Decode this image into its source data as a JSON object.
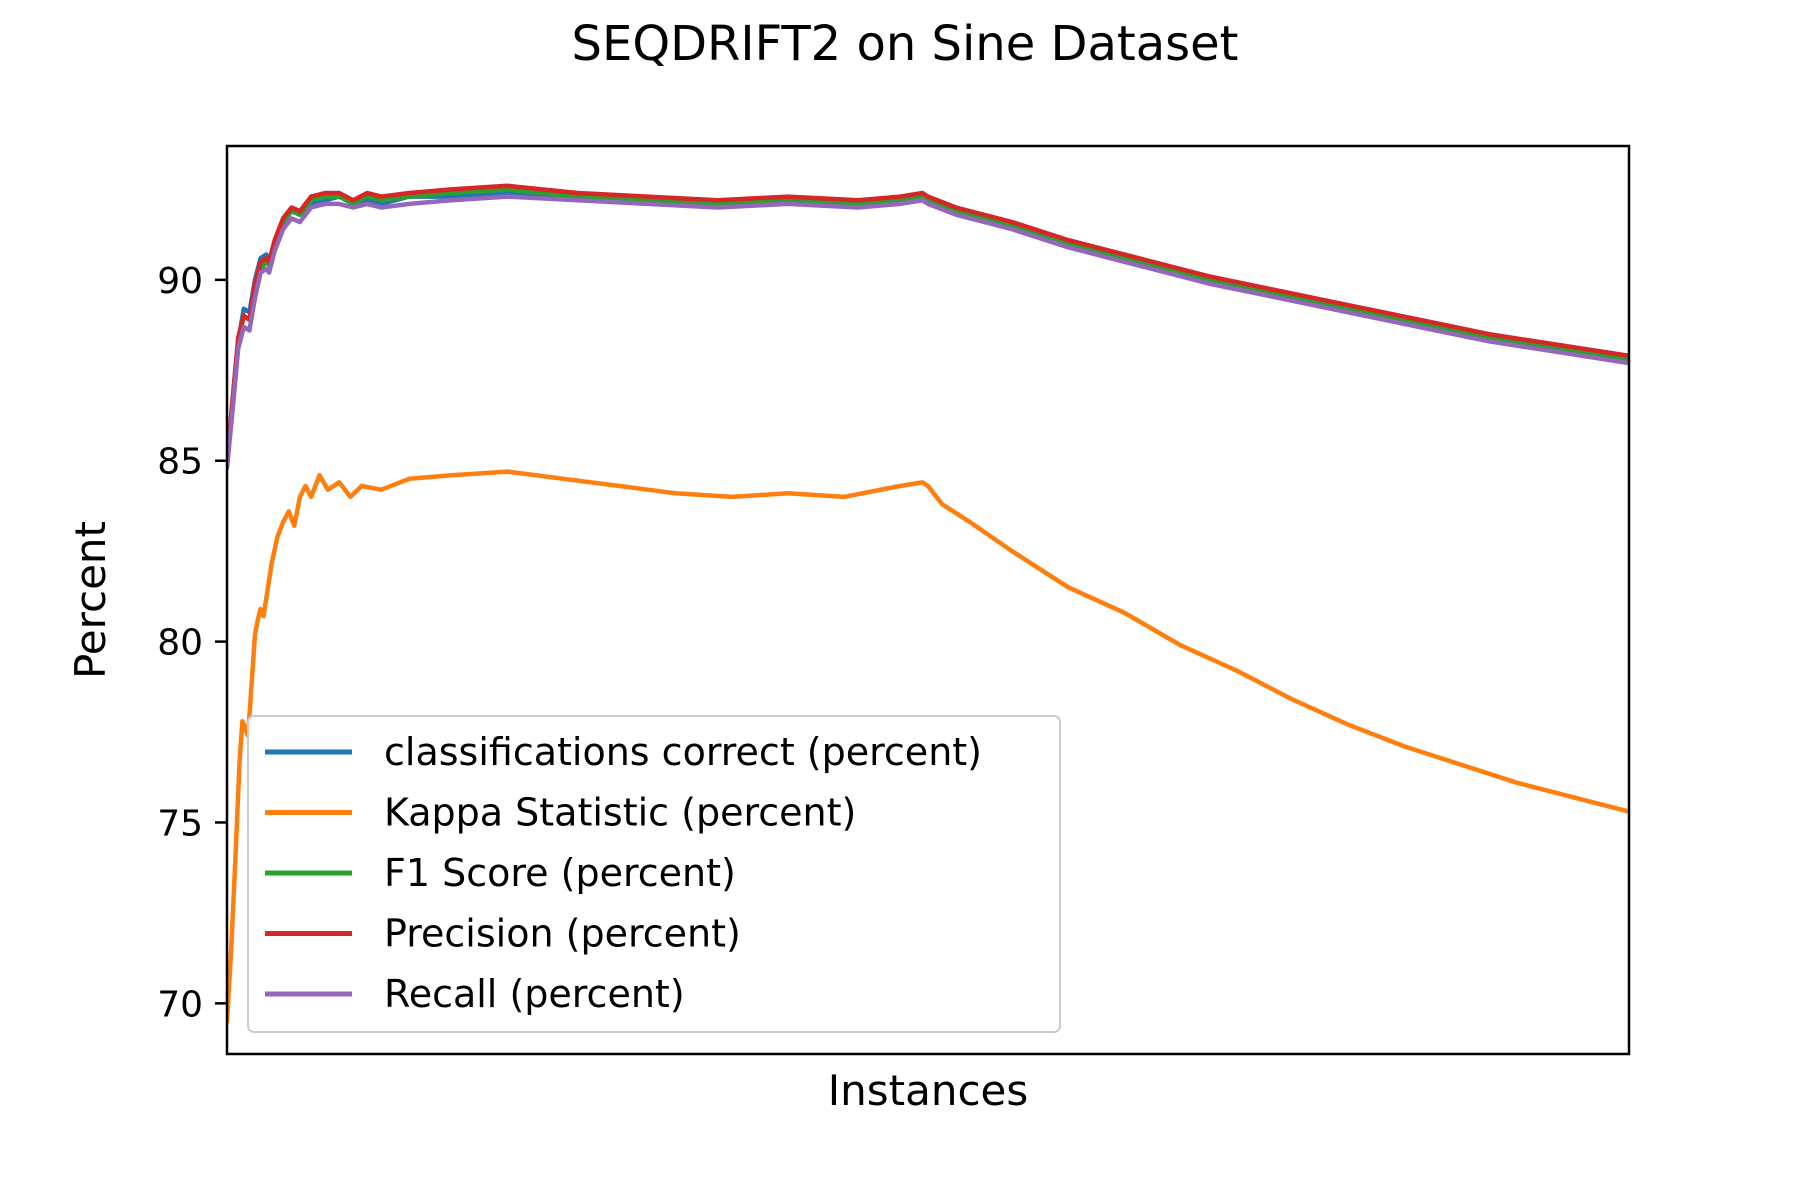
{
  "chart_data": {
    "type": "line",
    "title": "SEQDRIFT2 on Sine Dataset",
    "xlabel": "Instances",
    "ylabel": "Percent",
    "xlim": [
      0,
      1000
    ],
    "ylim": [
      68.6,
      93.7
    ],
    "yticks": [
      70,
      75,
      80,
      85,
      90
    ],
    "xticks": [],
    "grid": false,
    "legend_position": "lower-left",
    "series": [
      {
        "name": "classifications correct (percent)",
        "color": "#1f77b4",
        "points": [
          [
            0,
            85.0
          ],
          [
            4,
            86.6
          ],
          [
            8,
            88.3
          ],
          [
            12,
            89.2
          ],
          [
            16,
            89.1
          ],
          [
            20,
            90.0
          ],
          [
            24,
            90.6
          ],
          [
            28,
            90.7
          ],
          [
            30,
            90.5
          ],
          [
            34,
            91.0
          ],
          [
            40,
            91.6
          ],
          [
            46,
            91.9
          ],
          [
            52,
            91.8
          ],
          [
            60,
            92.1
          ],
          [
            70,
            92.2
          ],
          [
            80,
            92.3
          ],
          [
            90,
            92.1
          ],
          [
            100,
            92.2
          ],
          [
            110,
            92.1
          ],
          [
            130,
            92.3
          ],
          [
            160,
            92.3
          ],
          [
            200,
            92.4
          ],
          [
            250,
            92.3
          ],
          [
            300,
            92.2
          ],
          [
            350,
            92.1
          ],
          [
            400,
            92.2
          ],
          [
            450,
            92.1
          ],
          [
            480,
            92.2
          ],
          [
            496,
            92.3
          ],
          [
            500,
            92.2
          ],
          [
            520,
            91.9
          ],
          [
            560,
            91.5
          ],
          [
            600,
            91.0
          ],
          [
            650,
            90.5
          ],
          [
            700,
            90.0
          ],
          [
            750,
            89.6
          ],
          [
            800,
            89.2
          ],
          [
            850,
            88.8
          ],
          [
            900,
            88.4
          ],
          [
            950,
            88.1
          ],
          [
            1000,
            87.8
          ]
        ]
      },
      {
        "name": "Kappa Statistic (percent)",
        "color": "#ff7f0e",
        "points": [
          [
            0,
            69.5
          ],
          [
            3,
            71.5
          ],
          [
            6,
            74.0
          ],
          [
            9,
            76.7
          ],
          [
            11,
            77.8
          ],
          [
            13,
            77.6
          ],
          [
            15,
            77.4
          ],
          [
            17,
            78.5
          ],
          [
            20,
            80.2
          ],
          [
            22,
            80.6
          ],
          [
            24,
            80.9
          ],
          [
            26,
            80.7
          ],
          [
            28,
            81.2
          ],
          [
            32,
            82.2
          ],
          [
            36,
            82.9
          ],
          [
            40,
            83.3
          ],
          [
            44,
            83.6
          ],
          [
            48,
            83.2
          ],
          [
            52,
            84.0
          ],
          [
            56,
            84.3
          ],
          [
            60,
            84.0
          ],
          [
            66,
            84.6
          ],
          [
            72,
            84.2
          ],
          [
            80,
            84.4
          ],
          [
            88,
            84.0
          ],
          [
            96,
            84.3
          ],
          [
            110,
            84.2
          ],
          [
            130,
            84.5
          ],
          [
            160,
            84.6
          ],
          [
            200,
            84.7
          ],
          [
            240,
            84.5
          ],
          [
            280,
            84.3
          ],
          [
            320,
            84.1
          ],
          [
            360,
            84.0
          ],
          [
            400,
            84.1
          ],
          [
            440,
            84.0
          ],
          [
            480,
            84.3
          ],
          [
            496,
            84.4
          ],
          [
            500,
            84.3
          ],
          [
            510,
            83.8
          ],
          [
            530,
            83.3
          ],
          [
            560,
            82.5
          ],
          [
            600,
            81.5
          ],
          [
            640,
            80.8
          ],
          [
            680,
            79.9
          ],
          [
            720,
            79.2
          ],
          [
            760,
            78.4
          ],
          [
            800,
            77.7
          ],
          [
            840,
            77.1
          ],
          [
            880,
            76.6
          ],
          [
            920,
            76.1
          ],
          [
            960,
            75.7
          ],
          [
            1000,
            75.3
          ]
        ]
      },
      {
        "name": "F1 Score (percent)",
        "color": "#2ca02c",
        "points": [
          [
            0,
            85.0
          ],
          [
            4,
            86.6
          ],
          [
            8,
            88.3
          ],
          [
            12,
            89.0
          ],
          [
            16,
            88.9
          ],
          [
            20,
            89.8
          ],
          [
            24,
            90.3
          ],
          [
            28,
            90.5
          ],
          [
            30,
            90.4
          ],
          [
            34,
            90.9
          ],
          [
            40,
            91.6
          ],
          [
            46,
            91.9
          ],
          [
            52,
            91.8
          ],
          [
            60,
            92.2
          ],
          [
            70,
            92.3
          ],
          [
            80,
            92.3
          ],
          [
            90,
            92.1
          ],
          [
            100,
            92.3
          ],
          [
            110,
            92.2
          ],
          [
            130,
            92.3
          ],
          [
            160,
            92.4
          ],
          [
            200,
            92.5
          ],
          [
            250,
            92.3
          ],
          [
            300,
            92.2
          ],
          [
            350,
            92.1
          ],
          [
            400,
            92.2
          ],
          [
            450,
            92.1
          ],
          [
            480,
            92.2
          ],
          [
            496,
            92.3
          ],
          [
            500,
            92.2
          ],
          [
            520,
            91.9
          ],
          [
            560,
            91.5
          ],
          [
            600,
            91.0
          ],
          [
            650,
            90.5
          ],
          [
            700,
            90.0
          ],
          [
            750,
            89.6
          ],
          [
            800,
            89.2
          ],
          [
            850,
            88.8
          ],
          [
            900,
            88.4
          ],
          [
            950,
            88.1
          ],
          [
            1000,
            87.8
          ]
        ]
      },
      {
        "name": "Precision (percent)",
        "color": "#d62728",
        "points": [
          [
            0,
            85.0
          ],
          [
            4,
            86.7
          ],
          [
            8,
            88.4
          ],
          [
            12,
            89.0
          ],
          [
            16,
            88.9
          ],
          [
            20,
            89.9
          ],
          [
            24,
            90.5
          ],
          [
            28,
            90.6
          ],
          [
            30,
            90.5
          ],
          [
            34,
            91.1
          ],
          [
            40,
            91.7
          ],
          [
            46,
            92.0
          ],
          [
            52,
            91.9
          ],
          [
            60,
            92.3
          ],
          [
            70,
            92.4
          ],
          [
            80,
            92.4
          ],
          [
            90,
            92.2
          ],
          [
            100,
            92.4
          ],
          [
            110,
            92.3
          ],
          [
            130,
            92.4
          ],
          [
            160,
            92.5
          ],
          [
            200,
            92.6
          ],
          [
            250,
            92.4
          ],
          [
            300,
            92.3
          ],
          [
            350,
            92.2
          ],
          [
            400,
            92.3
          ],
          [
            450,
            92.2
          ],
          [
            480,
            92.3
          ],
          [
            496,
            92.4
          ],
          [
            500,
            92.3
          ],
          [
            520,
            92.0
          ],
          [
            560,
            91.6
          ],
          [
            600,
            91.1
          ],
          [
            650,
            90.6
          ],
          [
            700,
            90.1
          ],
          [
            750,
            89.7
          ],
          [
            800,
            89.3
          ],
          [
            850,
            88.9
          ],
          [
            900,
            88.5
          ],
          [
            950,
            88.2
          ],
          [
            1000,
            87.9
          ]
        ]
      },
      {
        "name": "Recall (percent)",
        "color": "#9467bd",
        "points": [
          [
            0,
            84.8
          ],
          [
            4,
            86.4
          ],
          [
            8,
            88.1
          ],
          [
            12,
            88.7
          ],
          [
            16,
            88.6
          ],
          [
            20,
            89.5
          ],
          [
            24,
            90.2
          ],
          [
            28,
            90.3
          ],
          [
            30,
            90.2
          ],
          [
            34,
            90.8
          ],
          [
            40,
            91.4
          ],
          [
            46,
            91.7
          ],
          [
            52,
            91.6
          ],
          [
            60,
            92.0
          ],
          [
            70,
            92.1
          ],
          [
            80,
            92.1
          ],
          [
            90,
            92.0
          ],
          [
            100,
            92.1
          ],
          [
            110,
            92.0
          ],
          [
            130,
            92.1
          ],
          [
            160,
            92.2
          ],
          [
            200,
            92.3
          ],
          [
            250,
            92.2
          ],
          [
            300,
            92.1
          ],
          [
            350,
            92.0
          ],
          [
            400,
            92.1
          ],
          [
            450,
            92.0
          ],
          [
            480,
            92.1
          ],
          [
            496,
            92.2
          ],
          [
            500,
            92.1
          ],
          [
            520,
            91.8
          ],
          [
            560,
            91.4
          ],
          [
            600,
            90.9
          ],
          [
            650,
            90.4
          ],
          [
            700,
            89.9
          ],
          [
            750,
            89.5
          ],
          [
            800,
            89.1
          ],
          [
            850,
            88.7
          ],
          [
            900,
            88.3
          ],
          [
            950,
            88.0
          ],
          [
            1000,
            87.7
          ]
        ]
      }
    ]
  }
}
